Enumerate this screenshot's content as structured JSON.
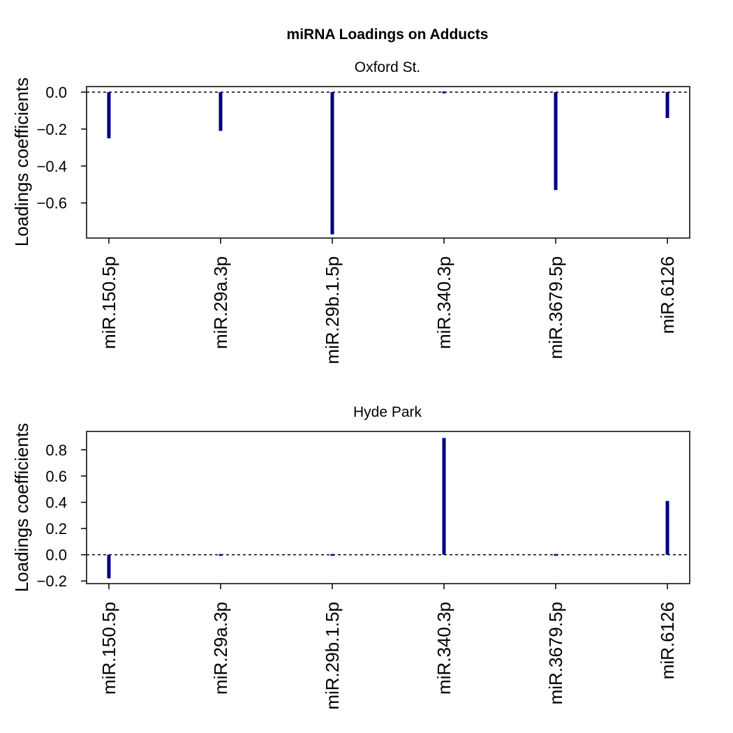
{
  "title": "miRNA Loadings on Adducts",
  "colors": {
    "bar": "#000080",
    "axis": "#000000",
    "zero_line": "#000000"
  },
  "chart_data": [
    {
      "type": "bar",
      "subtitle": "Oxford St.",
      "ylabel": "Loadings coefficients",
      "xlabel": "",
      "categories": [
        "miR.150.5p",
        "miR.29a.3p",
        "miR.29b.1.5p",
        "miR.340.3p",
        "miR.3679.5p",
        "miR.6126"
      ],
      "values": [
        -0.25,
        -0.21,
        -0.77,
        -0.003,
        -0.53,
        -0.14
      ],
      "ylim": [
        -0.79,
        0.03
      ],
      "yticks": [
        0.0,
        -0.2,
        -0.4,
        -0.6
      ],
      "ytick_labels": [
        "0.0",
        "−0.2",
        "−0.4",
        "−0.6"
      ],
      "reference_line": 0,
      "grid": false
    },
    {
      "type": "bar",
      "subtitle": "Hyde Park",
      "ylabel": "Loadings coefficients",
      "xlabel": "",
      "categories": [
        "miR.150.5p",
        "miR.29a.3p",
        "miR.29b.1.5p",
        "miR.340.3p",
        "miR.3679.5p",
        "miR.6126"
      ],
      "values": [
        -0.18,
        -0.003,
        -0.003,
        0.89,
        -0.003,
        0.41
      ],
      "ylim": [
        -0.22,
        0.94
      ],
      "yticks": [
        0.8,
        0.6,
        0.4,
        0.2,
        0.0,
        -0.2
      ],
      "ytick_labels": [
        "0.8",
        "0.6",
        "0.4",
        "0.2",
        "0.0",
        "−0.2"
      ],
      "reference_line": 0,
      "grid": false
    }
  ]
}
